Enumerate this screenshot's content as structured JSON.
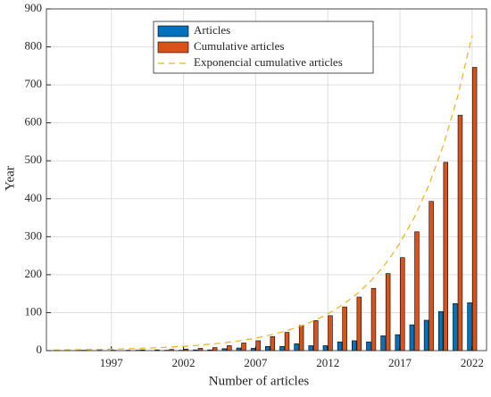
{
  "chart_data": {
    "type": "bar",
    "x_label": "Number of articles",
    "y_label": "Year",
    "x": [
      1993,
      1994,
      1995,
      1996,
      1997,
      1998,
      1999,
      2000,
      2001,
      2002,
      2003,
      2004,
      2005,
      2006,
      2007,
      2008,
      2009,
      2010,
      2011,
      2012,
      2013,
      2014,
      2015,
      2016,
      2017,
      2018,
      2019,
      2020,
      2021,
      2022
    ],
    "series": [
      {
        "name": "Articles",
        "color": "#0072bd",
        "kind": "bar",
        "values": [
          0,
          0,
          1,
          0,
          0,
          0,
          1,
          0,
          1,
          1,
          2,
          2,
          5,
          7,
          6,
          11,
          11,
          18,
          13,
          13,
          23,
          26,
          23,
          39,
          42,
          68,
          80,
          103,
          124,
          126
        ]
      },
      {
        "name": "Cumulative articles",
        "color": "#d95319",
        "kind": "bar",
        "values": [
          0,
          0,
          1,
          1,
          1,
          1,
          2,
          2,
          3,
          4,
          6,
          8,
          13,
          20,
          26,
          37,
          48,
          66,
          79,
          92,
          115,
          141,
          164,
          203,
          245,
          313,
          393,
          496,
          620,
          746
        ]
      },
      {
        "name": "Exponencial cumulative articles",
        "color": "#edb120",
        "kind": "line",
        "dashed": true,
        "values": [
          1.6,
          2.0,
          2.5,
          3.1,
          3.8,
          4.8,
          5.9,
          7.3,
          9.1,
          11.2,
          13.9,
          17.3,
          21.4,
          26.6,
          33.0,
          40.9,
          50.7,
          62.9,
          77.9,
          96.6,
          119.8,
          148.6,
          184.2,
          228.4,
          283.2,
          351.2,
          435.4,
          539.9,
          669.4,
          830
        ]
      }
    ],
    "xlim": [
      1992.5,
      2023
    ],
    "xticks": [
      1997,
      2002,
      2007,
      2012,
      2017,
      2022
    ],
    "ylim": [
      0,
      900
    ],
    "yticks": [
      0,
      100,
      200,
      300,
      400,
      500,
      600,
      700,
      800,
      900
    ],
    "grid": true,
    "legend": "top"
  }
}
